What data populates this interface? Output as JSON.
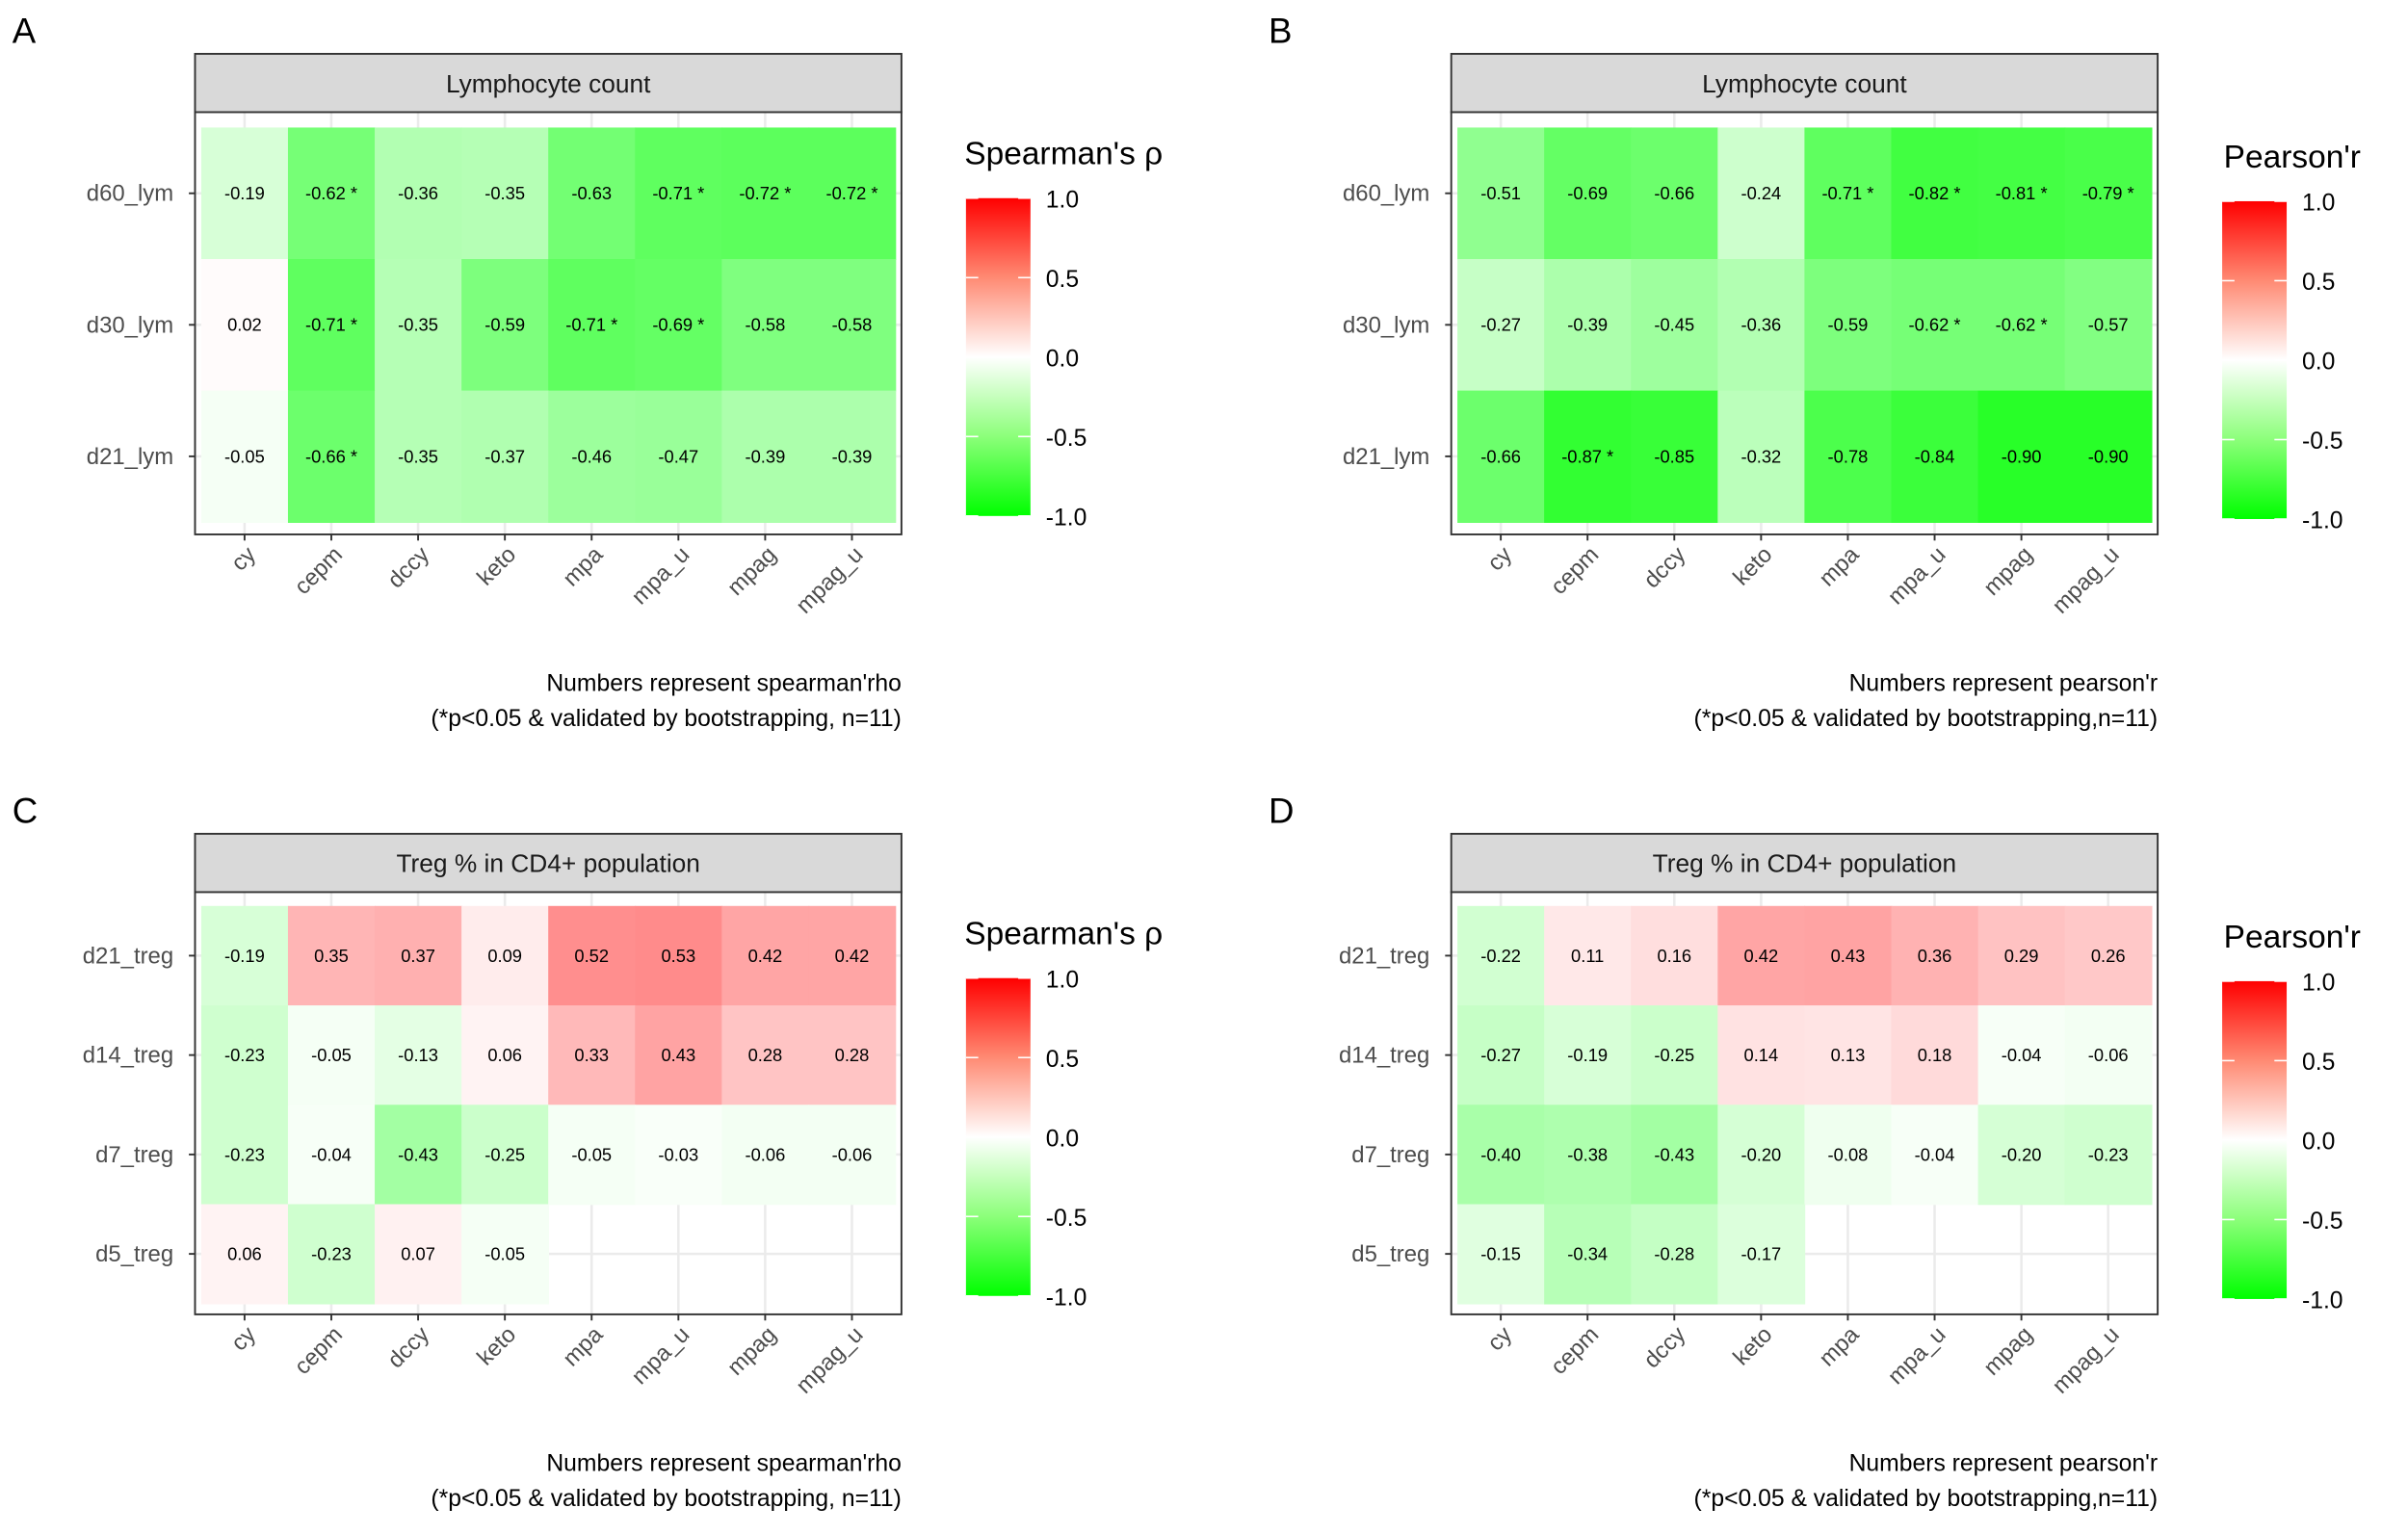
{
  "chart_data": [
    {
      "type": "heatmap",
      "panel_label": "A",
      "title": "Lymphocyte count",
      "legend_title": "Spearman's ρ",
      "legend_ticks": [
        "1.0",
        "0.5",
        "0.0",
        "-0.5",
        "-1.0"
      ],
      "color_scale": {
        "low": "#00FF00",
        "mid": "#FFFFFF",
        "high": "#FF0000",
        "limits": [
          -1,
          1
        ]
      },
      "caption": [
        "Numbers represent spearman'rho",
        "(*p<0.05 & validated by bootstrapping, n=11)"
      ],
      "columns": [
        "cy",
        "cepm",
        "dccy",
        "keto",
        "mpa",
        "mpa_u",
        "mpag",
        "mpag_u"
      ],
      "rows": [
        "d60_lym",
        "d30_lym",
        "d21_lym"
      ],
      "values": [
        [
          -0.19,
          -0.62,
          -0.36,
          -0.35,
          -0.63,
          -0.71,
          -0.72,
          -0.72
        ],
        [
          0.02,
          -0.71,
          -0.35,
          -0.59,
          -0.71,
          -0.69,
          -0.58,
          -0.58
        ],
        [
          -0.05,
          -0.66,
          -0.35,
          -0.37,
          -0.46,
          -0.47,
          -0.39,
          -0.39
        ]
      ],
      "significant": [
        [
          false,
          true,
          false,
          false,
          false,
          true,
          true,
          true
        ],
        [
          false,
          true,
          false,
          false,
          true,
          true,
          false,
          false
        ],
        [
          false,
          true,
          false,
          false,
          false,
          false,
          false,
          false
        ]
      ]
    },
    {
      "type": "heatmap",
      "panel_label": "B",
      "title": "Lymphocyte count",
      "legend_title": "Pearson'r",
      "legend_ticks": [
        "1.0",
        "0.5",
        "0.0",
        "-0.5",
        "-1.0"
      ],
      "color_scale": {
        "low": "#00FF00",
        "mid": "#FFFFFF",
        "high": "#FF0000",
        "limits": [
          -1,
          1
        ]
      },
      "caption": [
        "Numbers represent pearson'r",
        "(*p<0.05 & validated by bootstrapping,n=11)"
      ],
      "columns": [
        "cy",
        "cepm",
        "dccy",
        "keto",
        "mpa",
        "mpa_u",
        "mpag",
        "mpag_u"
      ],
      "rows": [
        "d60_lym",
        "d30_lym",
        "d21_lym"
      ],
      "values": [
        [
          -0.51,
          -0.69,
          -0.66,
          -0.24,
          -0.71,
          -0.82,
          -0.81,
          -0.79
        ],
        [
          -0.27,
          -0.39,
          -0.45,
          -0.36,
          -0.59,
          -0.62,
          -0.62,
          -0.57
        ],
        [
          -0.66,
          -0.87,
          -0.85,
          -0.32,
          -0.78,
          -0.84,
          -0.9,
          -0.9
        ]
      ],
      "significant": [
        [
          false,
          false,
          false,
          false,
          true,
          true,
          true,
          true
        ],
        [
          false,
          false,
          false,
          false,
          false,
          true,
          true,
          false
        ],
        [
          false,
          true,
          false,
          false,
          false,
          false,
          false,
          false
        ]
      ]
    },
    {
      "type": "heatmap",
      "panel_label": "C",
      "title": "Treg % in CD4+ population",
      "legend_title": "Spearman's ρ",
      "legend_ticks": [
        "1.0",
        "0.5",
        "0.0",
        "-0.5",
        "-1.0"
      ],
      "color_scale": {
        "low": "#00FF00",
        "mid": "#FFFFFF",
        "high": "#FF0000",
        "limits": [
          -1,
          1
        ]
      },
      "caption": [
        "Numbers represent spearman'rho",
        "(*p<0.05 & validated by bootstrapping, n=11)"
      ],
      "columns": [
        "cy",
        "cepm",
        "dccy",
        "keto",
        "mpa",
        "mpa_u",
        "mpag",
        "mpag_u"
      ],
      "rows": [
        "d21_treg",
        "d14_treg",
        "d7_treg",
        "d5_treg"
      ],
      "values": [
        [
          -0.19,
          0.35,
          0.37,
          0.09,
          0.52,
          0.53,
          0.42,
          0.42
        ],
        [
          -0.23,
          -0.05,
          -0.13,
          0.06,
          0.33,
          0.43,
          0.28,
          0.28
        ],
        [
          -0.23,
          -0.04,
          -0.43,
          -0.25,
          -0.05,
          -0.03,
          -0.06,
          -0.06
        ],
        [
          0.06,
          -0.23,
          0.07,
          -0.05,
          null,
          null,
          null,
          null
        ]
      ],
      "significant": [
        [
          false,
          false,
          false,
          false,
          false,
          false,
          false,
          false
        ],
        [
          false,
          false,
          false,
          false,
          false,
          false,
          false,
          false
        ],
        [
          false,
          false,
          false,
          false,
          false,
          false,
          false,
          false
        ],
        [
          false,
          false,
          false,
          false,
          false,
          false,
          false,
          false
        ]
      ]
    },
    {
      "type": "heatmap",
      "panel_label": "D",
      "title": "Treg % in CD4+ population",
      "legend_title": "Pearson'r",
      "legend_ticks": [
        "1.0",
        "0.5",
        "0.0",
        "-0.5",
        "-1.0"
      ],
      "color_scale": {
        "low": "#00FF00",
        "mid": "#FFFFFF",
        "high": "#FF0000",
        "limits": [
          -1,
          1
        ]
      },
      "caption": [
        "Numbers represent pearson'r",
        "(*p<0.05 & validated by bootstrapping,n=11)"
      ],
      "columns": [
        "cy",
        "cepm",
        "dccy",
        "keto",
        "mpa",
        "mpa_u",
        "mpag",
        "mpag_u"
      ],
      "rows": [
        "d21_treg",
        "d14_treg",
        "d7_treg",
        "d5_treg"
      ],
      "values": [
        [
          -0.22,
          0.11,
          0.16,
          0.42,
          0.43,
          0.36,
          0.29,
          0.26
        ],
        [
          -0.27,
          -0.19,
          -0.25,
          0.14,
          0.13,
          0.18,
          -0.04,
          -0.06
        ],
        [
          -0.4,
          -0.38,
          -0.43,
          -0.2,
          -0.08,
          -0.04,
          -0.2,
          -0.23
        ],
        [
          -0.15,
          -0.34,
          -0.28,
          -0.17,
          null,
          null,
          null,
          null
        ]
      ],
      "significant": [
        [
          false,
          false,
          false,
          false,
          false,
          false,
          false,
          false
        ],
        [
          false,
          false,
          false,
          false,
          false,
          false,
          false,
          false
        ],
        [
          false,
          false,
          false,
          false,
          false,
          false,
          false,
          false
        ],
        [
          false,
          false,
          false,
          false,
          false,
          false,
          false,
          false
        ]
      ]
    }
  ]
}
